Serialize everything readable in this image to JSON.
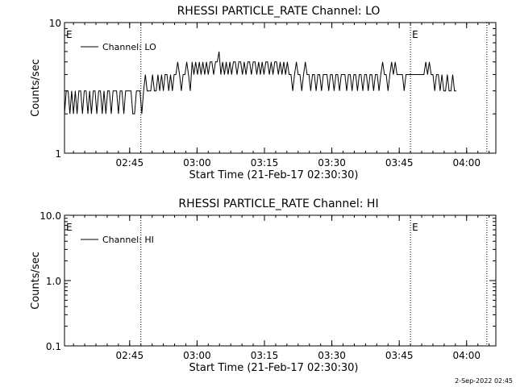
{
  "footer": {
    "timestamp": "2-Sep-2022 02:45"
  },
  "chart_data": [
    {
      "type": "line",
      "title": "RHESSI PARTICLE_RATE Channel: LO",
      "xlabel": "Start Time (21-Feb-17 02:30:30)",
      "ylabel": "Counts/sec",
      "yscale": "log",
      "xlim_minutes": [
        0,
        96
      ],
      "ylim": [
        1,
        10
      ],
      "xticks": [
        "02:45",
        "03:00",
        "03:15",
        "03:30",
        "03:45",
        "04:00"
      ],
      "yticks": [
        "1",
        "10"
      ],
      "markers": [
        {
          "label": "E",
          "x_minutes": 0
        },
        {
          "label": "",
          "x_minutes": 17
        },
        {
          "label": "E",
          "x_minutes": 77
        },
        {
          "label": "",
          "x_minutes": 94
        }
      ],
      "legend": {
        "label": "Channel: LO",
        "placement": "top-left"
      },
      "series": [
        {
          "name": "Channel: LO",
          "color": "#000000",
          "t_start_min": 0,
          "t_step_min": 0.4,
          "values": [
            2,
            3,
            3,
            2,
            3,
            2,
            3,
            2,
            3,
            3,
            2,
            3,
            3,
            2,
            3,
            2,
            3,
            3,
            2,
            3,
            3,
            2,
            3,
            2,
            3,
            3,
            2,
            3,
            3,
            3,
            2,
            3,
            3,
            2,
            3,
            3,
            3,
            3,
            2,
            2,
            3,
            3,
            3,
            2,
            3,
            4,
            3,
            3,
            3,
            4,
            3,
            3,
            4,
            3,
            4,
            3,
            4,
            4,
            3,
            4,
            3,
            4,
            4,
            5,
            4,
            3,
            4,
            4,
            5,
            4,
            3,
            5,
            4,
            5,
            4,
            5,
            4,
            5,
            4,
            5,
            4,
            5,
            5,
            4,
            5,
            5,
            6,
            4,
            5,
            4,
            5,
            4,
            5,
            4,
            5,
            5,
            4,
            5,
            5,
            4,
            5,
            4,
            5,
            5,
            4,
            5,
            5,
            4,
            5,
            4,
            5,
            4,
            5,
            5,
            4,
            5,
            4,
            5,
            5,
            4,
            5,
            4,
            5,
            4,
            5,
            4,
            4,
            3,
            4,
            5,
            4,
            4,
            3,
            4,
            5,
            4,
            4,
            3,
            4,
            4,
            3,
            4,
            4,
            3,
            4,
            4,
            4,
            3,
            4,
            4,
            3,
            4,
            4,
            3,
            4,
            4,
            4,
            3,
            4,
            4,
            3,
            4,
            4,
            3,
            4,
            4,
            3,
            4,
            4,
            3,
            4,
            4,
            3,
            4,
            4,
            3,
            4,
            5,
            4,
            4,
            3,
            4,
            5,
            4,
            5,
            4,
            4,
            4,
            4,
            3,
            4,
            4,
            4,
            4,
            4,
            4,
            4,
            4,
            4,
            4,
            4,
            5,
            4,
            5,
            4,
            4,
            3,
            4,
            4,
            3,
            4,
            3,
            3,
            4,
            3,
            3,
            4,
            3,
            3
          ]
        }
      ]
    },
    {
      "type": "line",
      "title": "RHESSI PARTICLE_RATE Channel: HI",
      "xlabel": "Start Time (21-Feb-17 02:30:30)",
      "ylabel": "Counts/sec",
      "yscale": "log",
      "xlim_minutes": [
        0,
        96
      ],
      "ylim": [
        0.1,
        10.0
      ],
      "xticks": [
        "02:45",
        "03:00",
        "03:15",
        "03:30",
        "03:45",
        "04:00"
      ],
      "yticks": [
        "0.1",
        "1.0",
        "10.0"
      ],
      "markers": [
        {
          "label": "E",
          "x_minutes": 0
        },
        {
          "label": "",
          "x_minutes": 17
        },
        {
          "label": "E",
          "x_minutes": 77
        },
        {
          "label": "",
          "x_minutes": 94
        }
      ],
      "legend": {
        "label": "Channel: HI",
        "placement": "top-left"
      },
      "series": [
        {
          "name": "Channel: HI",
          "color": "#000000",
          "t_start_min": 0,
          "t_step_min": 0.4,
          "values": []
        }
      ]
    }
  ]
}
